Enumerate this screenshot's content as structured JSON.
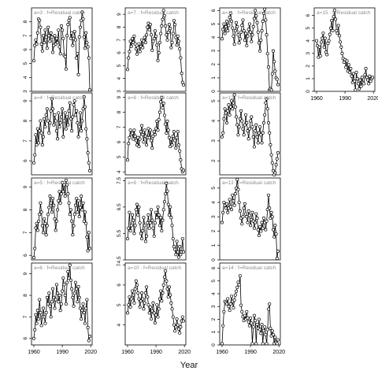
{
  "figure": {
    "xlabel": "Year",
    "line_color": "#000000",
    "label_color": "#8c8c8c"
  },
  "chart_data": [
    {
      "type": "scatter",
      "panel_label": "a=3 : f=Residual catch",
      "x_start": 1960,
      "ylim": [
        3,
        9
      ],
      "yticks": [
        3,
        4,
        5,
        6,
        7,
        8
      ],
      "show_xaxis": false,
      "values": [
        5.2,
        6.3,
        6.7,
        6.4,
        7.2,
        8.2,
        8.1,
        7.6,
        6.4,
        5.9,
        7.0,
        6.5,
        7.4,
        6.9,
        6.1,
        7.6,
        7.0,
        6.6,
        7.2,
        6.9,
        5.8,
        6.3,
        7.0,
        6.4,
        6.8,
        6.5,
        7.4,
        6.2,
        5.7,
        7.7,
        7.4,
        6.8,
        5.6,
        5.5,
        4.6,
        7.0,
        7.8,
        8.1,
        8.3,
        6.8,
        7.2,
        6.3,
        6.8,
        7.3,
        6.7,
        5.4,
        5.7,
        4.2,
        6.9,
        7.6,
        8.1,
        8.7,
        8.2,
        6.9,
        6.1,
        7.2,
        6.5,
        6.2,
        5.4,
        3.1
      ]
    },
    {
      "type": "scatter",
      "panel_label": "a=7 : f=Residual catch",
      "x_start": 1960,
      "ylim": [
        3,
        9.5
      ],
      "yticks": [
        3,
        4,
        5,
        6,
        7,
        8,
        9
      ],
      "show_xaxis": false,
      "values": [
        4.7,
        5.6,
        6.1,
        6.9,
        6.5,
        7.1,
        6.8,
        7.3,
        6.7,
        6.3,
        5.9,
        6.4,
        6.7,
        6.1,
        6.5,
        7.0,
        6.4,
        6.9,
        7.2,
        6.8,
        7.4,
        8.0,
        8.3,
        7.8,
        8.2,
        7.4,
        6.2,
        6.9,
        7.1,
        7.7,
        7.3,
        6.6,
        5.4,
        6.0,
        6.8,
        7.5,
        8.1,
        8.6,
        9.3,
        8.9,
        8.1,
        7.4,
        7.0,
        7.6,
        8.2,
        7.9,
        6.4,
        6.8,
        7.5,
        8.5,
        8.2,
        7.2,
        6.6,
        7.3,
        6.9,
        6.3,
        5.6,
        4.4,
        3.7,
        3.5
      ]
    },
    {
      "type": "scatter",
      "panel_label": "a=11 : f=Residual catch",
      "x_start": 1960,
      "ylim": [
        0,
        6.2
      ],
      "yticks": [
        0,
        1,
        2,
        3,
        4,
        5,
        6
      ],
      "show_xaxis": false,
      "values": [
        3.9,
        4.6,
        5.0,
        4.3,
        4.8,
        5.2,
        4.5,
        4.9,
        5.5,
        5.8,
        5.2,
        4.7,
        4.1,
        3.5,
        4.5,
        5.1,
        4.8,
        4.2,
        3.6,
        3.9,
        4.4,
        4.9,
        5.3,
        4.5,
        3.8,
        4.3,
        3.4,
        4.1,
        4.6,
        5.0,
        4.4,
        3.7,
        4.2,
        4.8,
        5.4,
        6.0,
        5.6,
        5.1,
        4.4,
        3.6,
        3.0,
        3.8,
        4.5,
        5.2,
        5.8,
        6.1,
        5.3,
        4.2,
        2.8,
        1.8,
        0.1,
        0.2,
        0.1,
        1.3,
        3.0,
        2.2,
        1.5,
        1.0,
        0.9,
        0.5
      ]
    },
    {
      "type": "scatter",
      "panel_label": "a=15 : f=Residual catch",
      "x_start": 1960,
      "ylim": [
        0,
        6.6
      ],
      "yticks": [
        0,
        1,
        2,
        3,
        4,
        5,
        6
      ],
      "show_xaxis": true,
      "xticks": [
        1960,
        1990,
        2020
      ],
      "values": [
        4.0,
        3.6,
        2.7,
        3.5,
        2.8,
        3.9,
        4.2,
        4.6,
        3.5,
        4.2,
        3.1,
        2.9,
        3.8,
        4.0,
        4.5,
        5.0,
        5.6,
        4.8,
        5.9,
        6.4,
        5.7,
        4.8,
        4.6,
        5.2,
        4.4,
        3.9,
        3.5,
        3.0,
        2.6,
        2.3,
        2.5,
        1.9,
        2.4,
        1.6,
        2.1,
        1.5,
        1.8,
        1.2,
        0.7,
        1.4,
        0.8,
        0.1,
        1.5,
        1.0,
        0.6,
        0.2,
        0.9,
        0.4,
        1.1,
        0.7,
        0.6,
        1.3,
        1.8,
        1.1,
        0.9,
        0.6,
        1.2,
        0.8,
        1.0,
        1.1
      ]
    },
    {
      "type": "scatter",
      "panel_label": "a=4 : f=Residual catch",
      "x_start": 1960,
      "ylim": [
        5.3,
        9.4
      ],
      "yticks": [
        6,
        7,
        8,
        9
      ],
      "show_xaxis": false,
      "values": [
        5.9,
        6.3,
        7.3,
        6.8,
        7.6,
        6.9,
        7.5,
        8.0,
        7.4,
        6.8,
        7.2,
        8.1,
        7.7,
        8.3,
        8.6,
        8.0,
        7.4,
        7.9,
        8.5,
        9.1,
        8.6,
        7.8,
        8.3,
        8.0,
        7.5,
        7.1,
        8.4,
        7.7,
        7.9,
        8.2,
        8.6,
        7.2,
        8.0,
        8.4,
        7.6,
        8.2,
        7.8,
        8.5,
        8.9,
        8.1,
        7.5,
        8.2,
        8.8,
        9.0,
        8.3,
        8.5,
        7.9,
        7.2,
        7.7,
        8.4,
        7.5,
        8.0,
        8.6,
        9.2,
        8.7,
        7.6,
        7.1,
        6.4,
        5.9,
        5.5
      ]
    },
    {
      "type": "scatter",
      "panel_label": "a=8 : f=Residual catch",
      "x_start": 1960,
      "ylim": [
        3.8,
        9.3
      ],
      "yticks": [
        4,
        5,
        6,
        7,
        8,
        9
      ],
      "show_xaxis": false,
      "values": [
        4.8,
        5.9,
        6.3,
        6.8,
        6.5,
        6.6,
        6.2,
        6.8,
        6.4,
        6.1,
        5.8,
        6.3,
        5.7,
        6.2,
        6.7,
        7.1,
        6.5,
        6.0,
        6.8,
        6.4,
        5.8,
        6.3,
        6.9,
        6.3,
        6.8,
        6.1,
        5.6,
        6.4,
        6.7,
        6.5,
        6.9,
        7.4,
        6.8,
        7.5,
        8.0,
        8.7,
        9.0,
        8.3,
        8.6,
        7.8,
        7.2,
        6.6,
        7.4,
        6.8,
        6.3,
        5.7,
        6.2,
        5.8,
        6.4,
        6.7,
        6.1,
        5.6,
        6.3,
        6.7,
        5.8,
        5.4,
        4.8,
        4.2,
        4.0,
        4.1
      ]
    },
    {
      "type": "scatter",
      "panel_label": "a=12 : f=Residual catch",
      "x_start": 1960,
      "ylim": [
        1.3,
        5.4
      ],
      "yticks": [
        2,
        3,
        4,
        5
      ],
      "show_xaxis": false,
      "values": [
        3.2,
        3.4,
        4.1,
        4.6,
        4.4,
        3.9,
        4.5,
        4.8,
        4.3,
        4.7,
        5.0,
        4.6,
        4.9,
        5.3,
        4.7,
        4.2,
        3.8,
        3.3,
        3.7,
        4.1,
        4.5,
        4.0,
        3.6,
        3.3,
        3.8,
        4.3,
        3.9,
        3.5,
        3.1,
        3.6,
        4.0,
        4.2,
        3.7,
        3.2,
        2.7,
        3.5,
        3.8,
        3.2,
        2.9,
        3.4,
        3.7,
        3.3,
        2.9,
        3.4,
        3.9,
        4.3,
        4.9,
        5.1,
        4.6,
        3.9,
        3.4,
        2.8,
        2.3,
        1.9,
        1.5,
        1.3,
        1.4,
        1.8,
        2.1,
        2.4
      ]
    },
    {
      "type": "scatter",
      "panel_label": "a=5 : f=Residual catch",
      "x_start": 1960,
      "ylim": [
        5.8,
        9.4
      ],
      "yticks": [
        6,
        7,
        8,
        9
      ],
      "show_xaxis": false,
      "values": [
        5.9,
        6.3,
        7.2,
        7.4,
        7.1,
        7.5,
        7.8,
        8.3,
        7.9,
        7.3,
        7.0,
        7.6,
        7.4,
        6.9,
        7.3,
        7.8,
        8.1,
        8.6,
        8.3,
        7.9,
        8.5,
        8.2,
        7.6,
        7.1,
        7.5,
        8.0,
        8.4,
        8.8,
        8.3,
        8.7,
        9.2,
        8.8,
        9.1,
        8.6,
        9.3,
        9.1,
        8.7,
        8.3,
        7.8,
        8.0,
        7.5,
        6.9,
        7.3,
        7.8,
        8.2,
        8.5,
        7.9,
        8.4,
        7.7,
        8.1,
        8.6,
        8.0,
        8.3,
        7.5,
        7.9,
        7.4,
        6.8,
        6.2,
        7.0,
        6.3
      ]
    },
    {
      "type": "scatter",
      "panel_label": "a=9 : f=Residual catch",
      "x_start": 1960,
      "ylim": [
        4.5,
        7.6
      ],
      "yticks": [
        4.5,
        5.5,
        6.5,
        7.5
      ],
      "show_xaxis": false,
      "values": [
        5.3,
        5.7,
        6.3,
        5.6,
        5.8,
        6.2,
        6.0,
        5.5,
        5.8,
        6.4,
        6.6,
        6.2,
        6.5,
        5.9,
        5.5,
        5.3,
        5.6,
        6.1,
        5.8,
        5.2,
        5.4,
        5.9,
        6.2,
        5.7,
        5.9,
        6.4,
        6.0,
        5.7,
        5.4,
        5.9,
        6.3,
        6.1,
        6.5,
        6.2,
        5.8,
        6.1,
        5.6,
        6.0,
        6.4,
        6.7,
        7.0,
        7.4,
        7.1,
        6.6,
        6.2,
        6.5,
        6.1,
        5.8,
        5.3,
        5.0,
        4.9,
        4.7,
        5.2,
        4.8,
        4.6,
        5.0,
        4.7,
        4.8,
        5.3,
        4.8
      ]
    },
    {
      "type": "scatter",
      "panel_label": "a=13 : f=Residual catch",
      "x_start": 1960,
      "ylim": [
        0,
        5.7
      ],
      "yticks": [
        0,
        1,
        2,
        3,
        4,
        5
      ],
      "show_xaxis": false,
      "values": [
        2.6,
        3.3,
        4.0,
        3.8,
        3.6,
        3.9,
        3.3,
        3.6,
        4.2,
        3.7,
        3.5,
        4.5,
        4.1,
        3.8,
        4.6,
        5.0,
        5.6,
        4.9,
        4.0,
        3.4,
        2.9,
        2.5,
        3.0,
        3.6,
        3.9,
        3.2,
        3.0,
        2.6,
        3.4,
        3.1,
        2.4,
        2.8,
        3.3,
        2.7,
        2.2,
        2.6,
        3.2,
        2.9,
        2.1,
        1.7,
        2.3,
        2.0,
        2.6,
        2.2,
        2.9,
        2.6,
        2.1,
        2.7,
        3.5,
        4.5,
        3.6,
        2.9,
        3.3,
        3.0,
        2.1,
        1.6,
        2.4,
        1.8,
        0.1,
        0.6
      ]
    },
    {
      "type": "scatter",
      "panel_label": "a=6 : f=Residual catch",
      "x_start": 1960,
      "ylim": [
        5.7,
        9.5
      ],
      "yticks": [
        6,
        7,
        8,
        9
      ],
      "show_xaxis": true,
      "xticks": [
        1960,
        1990,
        2020
      ],
      "values": [
        6.0,
        6.4,
        7.1,
        6.7,
        7.3,
        6.9,
        7.8,
        7.2,
        6.6,
        7.0,
        7.4,
        7.0,
        6.7,
        7.2,
        7.9,
        7.6,
        8.1,
        7.5,
        7.0,
        7.7,
        8.3,
        7.9,
        7.4,
        7.8,
        8.5,
        8.1,
        7.7,
        8.0,
        7.3,
        7.6,
        8.2,
        8.8,
        8.5,
        8.0,
        7.6,
        8.6,
        9.1,
        8.8,
        9.4,
        8.7,
        8.3,
        7.9,
        7.5,
        8.1,
        8.6,
        8.3,
        7.7,
        8.4,
        7.9,
        7.4,
        6.9,
        7.3,
        7.6,
        7.2,
        6.7,
        7.4,
        7.8,
        6.5,
        5.9,
        6.1
      ]
    },
    {
      "type": "scatter",
      "panel_label": "a=10 : f=Residual catch",
      "x_start": 1960,
      "ylim": [
        3,
        7.1
      ],
      "yticks": [
        4,
        5,
        6,
        7
      ],
      "show_xaxis": true,
      "xticks": [
        1960,
        1990,
        2020
      ],
      "values": [
        4.6,
        5.0,
        5.4,
        4.9,
        5.3,
        5.7,
        5.5,
        5.1,
        5.8,
        6.2,
        6.0,
        5.6,
        5.3,
        4.9,
        5.2,
        5.6,
        5.3,
        4.8,
        5.1,
        5.6,
        5.9,
        5.4,
        5.0,
        4.6,
        4.9,
        4.3,
        4.7,
        5.1,
        4.6,
        4.1,
        4.5,
        5.0,
        4.4,
        4.8,
        5.3,
        5.7,
        5.2,
        5.6,
        6.0,
        6.4,
        6.7,
        6.2,
        5.8,
        5.4,
        5.9,
        5.5,
        5.1,
        4.8,
        4.4,
        4.0,
        3.7,
        3.9,
        4.3,
        4.0,
        3.8,
        3.6,
        3.9,
        4.2,
        4.4,
        4.2
      ]
    },
    {
      "type": "scatter",
      "panel_label": "a=14 : f=Residual catch",
      "x_start": 1960,
      "ylim": [
        0,
        6.4
      ],
      "yticks": [
        0,
        1,
        2,
        3,
        4,
        5,
        6
      ],
      "show_xaxis": true,
      "xticks": [
        1960,
        1990,
        2020
      ],
      "values": [
        0.1,
        1.5,
        2.6,
        3.4,
        3.3,
        3.2,
        3.6,
        3.0,
        2.7,
        3.2,
        3.8,
        3.4,
        2.9,
        3.5,
        3.9,
        4.2,
        4.5,
        4.9,
        4.7,
        5.4,
        3.1,
        2.6,
        2.2,
        1.9,
        2.3,
        2.0,
        2.6,
        2.1,
        1.8,
        1.5,
        2.1,
        1.7,
        0.1,
        1.4,
        2.3,
        1.9,
        0.1,
        1.6,
        1.3,
        2.0,
        1.2,
        0.9,
        1.6,
        0.1,
        1.1,
        1.4,
        0.8,
        0.1,
        1.2,
        2.8,
        3.2,
        1.3,
        0.7,
        1.1,
        0.8,
        0.1,
        0.6,
        0.2,
        0.1,
        0.4
      ]
    }
  ]
}
